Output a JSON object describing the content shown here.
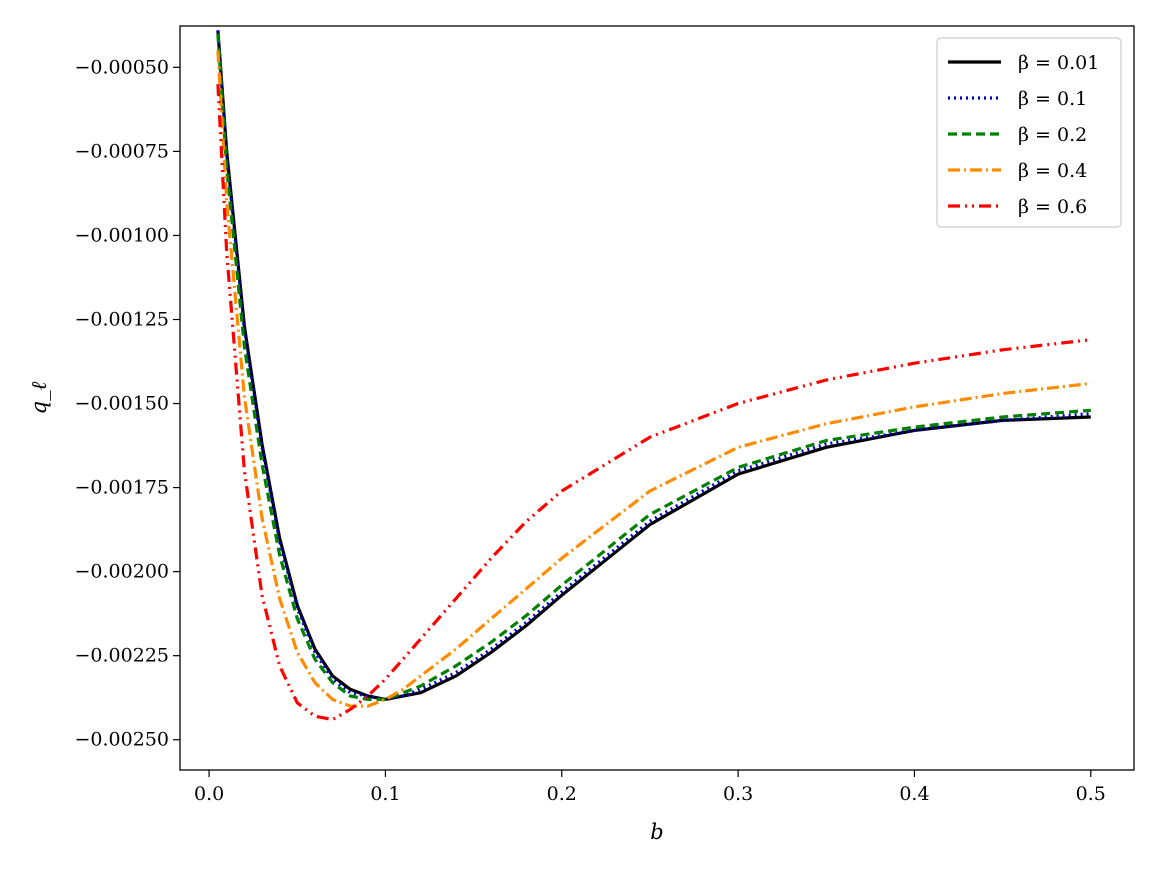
{
  "chart_data": {
    "type": "line",
    "title": "",
    "xlabel": "b",
    "ylabel": "q_ℓ",
    "xlim": [
      -0.0165,
      0.5245
    ],
    "ylim": [
      -0.00259,
      -0.000377
    ],
    "xticks": [
      0.0,
      0.1,
      0.2,
      0.3,
      0.4,
      0.5
    ],
    "xtick_labels": [
      "0.0",
      "0.1",
      "0.2",
      "0.3",
      "0.4",
      "0.5"
    ],
    "yticks": [
      -0.0005,
      -0.00075,
      -0.001,
      -0.00125,
      -0.0015,
      -0.00175,
      -0.002,
      -0.00225,
      -0.0025
    ],
    "ytick_labels": [
      "−0.00050",
      "−0.00075",
      "−0.00100",
      "−0.00125",
      "−0.00150",
      "−0.00175",
      "−0.00200",
      "−0.00225",
      "−0.00250"
    ],
    "grid": false,
    "legend_position": "top-right",
    "series": [
      {
        "name": "β = 0.01",
        "color": "#000000",
        "dash": "solid",
        "x": [
          0.005,
          0.01,
          0.02,
          0.03,
          0.04,
          0.05,
          0.06,
          0.07,
          0.08,
          0.09,
          0.1,
          0.11,
          0.12,
          0.14,
          0.16,
          0.18,
          0.2,
          0.25,
          0.3,
          0.35,
          0.4,
          0.45,
          0.5
        ],
        "y": [
          -0.00039,
          -0.00075,
          -0.00127,
          -0.00162,
          -0.0019,
          -0.0021,
          -0.00223,
          -0.00231,
          -0.00235,
          -0.00237,
          -0.00238,
          -0.00237,
          -0.00236,
          -0.00231,
          -0.00224,
          -0.00216,
          -0.00207,
          -0.00186,
          -0.00171,
          -0.00163,
          -0.00158,
          -0.00155,
          -0.00154
        ]
      },
      {
        "name": "β = 0.1",
        "color": "#0000cc",
        "dash": "dotted",
        "x": [
          0.005,
          0.01,
          0.02,
          0.03,
          0.04,
          0.05,
          0.06,
          0.07,
          0.08,
          0.09,
          0.1,
          0.11,
          0.12,
          0.14,
          0.16,
          0.18,
          0.2,
          0.25,
          0.3,
          0.35,
          0.4,
          0.45,
          0.5
        ],
        "y": [
          -0.00039,
          -0.00076,
          -0.00128,
          -0.00163,
          -0.00191,
          -0.00211,
          -0.00224,
          -0.00232,
          -0.00236,
          -0.00237,
          -0.00238,
          -0.00237,
          -0.00235,
          -0.0023,
          -0.00223,
          -0.00215,
          -0.00206,
          -0.00185,
          -0.0017,
          -0.00162,
          -0.00158,
          -0.00155,
          -0.00153
        ]
      },
      {
        "name": "β = 0.2",
        "color": "#008000",
        "dash": "dashed",
        "x": [
          0.005,
          0.01,
          0.02,
          0.03,
          0.04,
          0.05,
          0.06,
          0.07,
          0.08,
          0.09,
          0.1,
          0.11,
          0.12,
          0.14,
          0.16,
          0.18,
          0.2,
          0.25,
          0.3,
          0.35,
          0.4,
          0.45,
          0.5
        ],
        "y": [
          -0.0004,
          -0.0008,
          -0.00133,
          -0.00168,
          -0.00195,
          -0.00214,
          -0.00226,
          -0.00233,
          -0.00237,
          -0.00238,
          -0.00238,
          -0.00236,
          -0.00234,
          -0.00228,
          -0.00221,
          -0.00213,
          -0.00204,
          -0.00183,
          -0.00169,
          -0.00161,
          -0.00157,
          -0.00154,
          -0.00152
        ]
      },
      {
        "name": "β = 0.4",
        "color": "#ff8c00",
        "dash": "dashdot",
        "x": [
          0.005,
          0.01,
          0.02,
          0.03,
          0.04,
          0.05,
          0.06,
          0.07,
          0.08,
          0.09,
          0.1,
          0.11,
          0.12,
          0.14,
          0.16,
          0.18,
          0.2,
          0.25,
          0.3,
          0.35,
          0.4,
          0.45,
          0.5
        ],
        "y": [
          -0.00045,
          -0.0009,
          -0.00148,
          -0.00184,
          -0.00208,
          -0.00224,
          -0.00233,
          -0.00238,
          -0.0024,
          -0.0024,
          -0.00238,
          -0.00235,
          -0.00231,
          -0.00223,
          -0.00214,
          -0.00205,
          -0.00196,
          -0.00176,
          -0.00163,
          -0.00156,
          -0.00151,
          -0.00147,
          -0.00144
        ]
      },
      {
        "name": "β = 0.6",
        "color": "#ff0000",
        "dash": "dashdotdot",
        "x": [
          0.005,
          0.01,
          0.02,
          0.03,
          0.04,
          0.05,
          0.06,
          0.07,
          0.08,
          0.09,
          0.1,
          0.11,
          0.12,
          0.14,
          0.16,
          0.18,
          0.2,
          0.25,
          0.3,
          0.35,
          0.4,
          0.45,
          0.5
        ],
        "y": [
          -0.00055,
          -0.00105,
          -0.0017,
          -0.00207,
          -0.00228,
          -0.00239,
          -0.00243,
          -0.00244,
          -0.00241,
          -0.00237,
          -0.00232,
          -0.00226,
          -0.0022,
          -0.00208,
          -0.00196,
          -0.00185,
          -0.00176,
          -0.0016,
          -0.0015,
          -0.00143,
          -0.00138,
          -0.00134,
          -0.00131
        ]
      }
    ]
  }
}
